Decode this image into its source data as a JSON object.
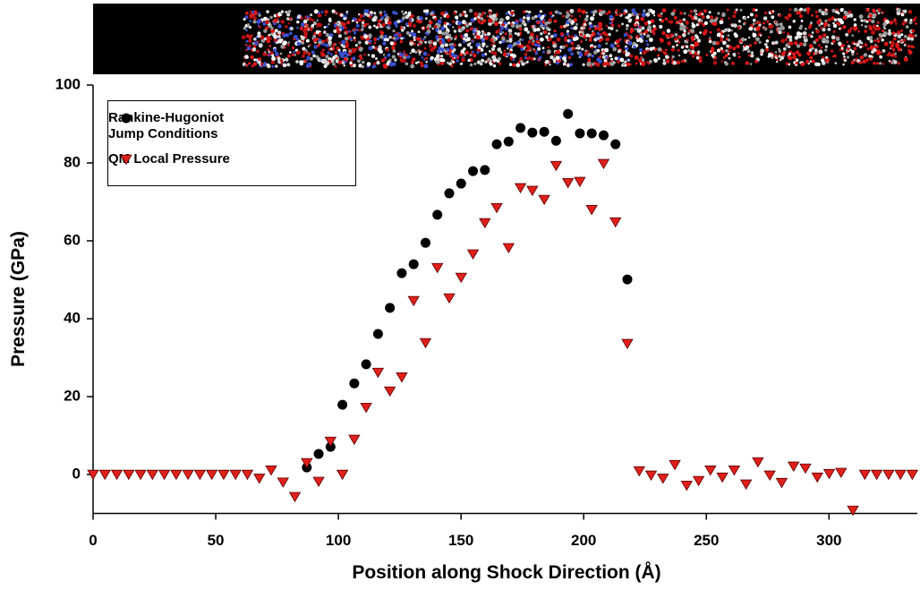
{
  "chart_data": {
    "type": "scatter",
    "xlabel": "Position along Shock Direction (Å)",
    "ylabel": "Pressure (GPa)",
    "xlim": [
      0,
      336
    ],
    "ylim": [
      -10,
      100
    ],
    "xticks": [
      0,
      50,
      100,
      150,
      200,
      250,
      300
    ],
    "yticks": [
      0,
      20,
      40,
      60,
      80,
      100
    ],
    "legend": "upper left",
    "series": [
      {
        "name": "Rankine-Hugoniot Jump Conditions",
        "color": "#000000",
        "marker": "circle",
        "x": [
          87.12,
          91.96,
          96.8,
          101.64,
          106.48,
          111.32,
          116.16,
          121,
          125.84,
          130.68,
          135.52,
          140.36,
          145.2,
          150.04,
          154.88,
          159.72,
          164.56,
          169.4,
          174.24,
          179.08,
          183.92,
          188.76,
          193.6,
          198.44,
          203.28,
          208.12,
          212.96,
          217.8
        ],
        "values": [
          1.8,
          5.3,
          7.1,
          17.9,
          23.4,
          28.3,
          36.1,
          42.8,
          51.7,
          54,
          59.5,
          66.7,
          72.2,
          74.7,
          77.9,
          78.2,
          84.8,
          85.5,
          89,
          87.8,
          88,
          85.7,
          92.6,
          87.6,
          87.6,
          87.1,
          84.8,
          50.1
        ]
      },
      {
        "name": "QM Local Pressure",
        "color": "#e0201b",
        "marker": "triangle-down",
        "x": [
          0,
          4.84,
          9.68,
          14.52,
          19.36,
          24.2,
          29.04,
          33.88,
          38.72,
          43.56,
          48.4,
          53.24,
          58.08,
          62.92,
          67.76,
          72.6,
          77.44,
          82.28,
          87.12,
          91.96,
          96.8,
          101.64,
          106.48,
          111.32,
          116.16,
          121,
          125.84,
          130.68,
          135.52,
          140.36,
          145.2,
          150.04,
          154.88,
          159.72,
          164.56,
          169.4,
          174.24,
          179.08,
          183.92,
          188.76,
          193.6,
          198.44,
          203.28,
          208.12,
          212.96,
          217.8,
          222.64,
          227.48,
          232.32,
          237.16,
          242,
          246.84,
          251.68,
          256.52,
          261.36,
          266.2,
          271.04,
          275.88,
          280.72,
          285.56,
          290.4,
          295.24,
          300.08,
          304.92,
          309.76,
          314.6,
          319.44,
          324.28,
          329.12,
          333.96
        ],
        "values": [
          0,
          0,
          0,
          0,
          0,
          0,
          0,
          0,
          0,
          0,
          0,
          0,
          0,
          0,
          -1,
          1.1,
          -2,
          -5.7,
          3,
          -1.8,
          8.5,
          0,
          9,
          17.2,
          26.2,
          21.4,
          25,
          44.6,
          33.8,
          53.1,
          45.3,
          50.6,
          56.6,
          64.6,
          68.5,
          58.2,
          73.6,
          72.9,
          70.6,
          79.3,
          74.9,
          75.2,
          68,
          79.8,
          64.8,
          33.6,
          0.9,
          -0.2,
          -1,
          2.5,
          -2.8,
          -1.6,
          1.1,
          -0.7,
          1.1,
          -2.5,
          3.2,
          -0.2,
          -2.1,
          2.1,
          1.6,
          -0.7,
          0.2,
          0.5,
          -9.2,
          0,
          0,
          0,
          0,
          0
        ]
      }
    ]
  }
}
